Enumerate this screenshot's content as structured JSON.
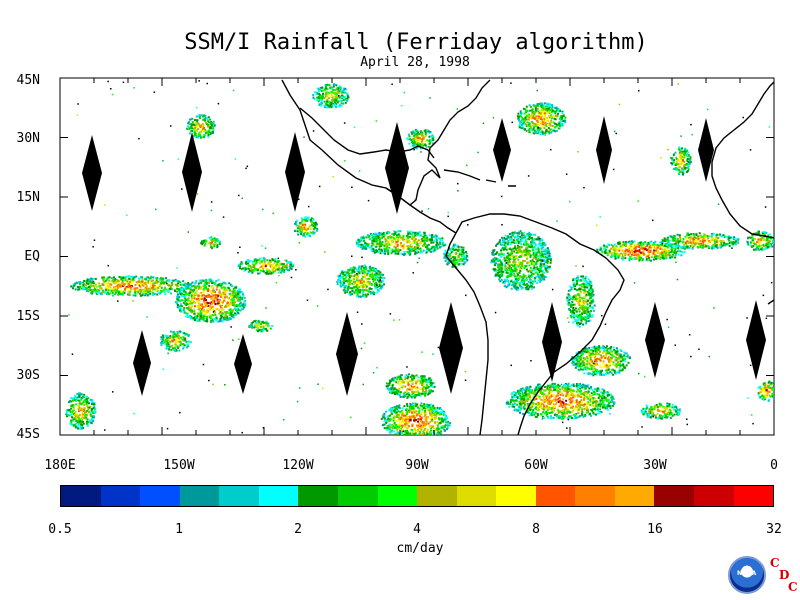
{
  "title": "SSM/I Rainfall (Ferriday algorithm)",
  "date": "April 28, 1998",
  "lat_labels": [
    "45N",
    "30N",
    "15N",
    "EQ",
    "15S",
    "30S",
    "45S"
  ],
  "lon_labels": [
    "180E",
    "150W",
    "120W",
    "90W",
    "60W",
    "30W",
    "0"
  ],
  "colorbar": {
    "ticks": [
      "0.5",
      "1",
      "2",
      "4",
      "8",
      "16",
      "32"
    ],
    "units": "cm/day",
    "colors": [
      "#001a80",
      "#0033c8",
      "#0050ff",
      "#00999b",
      "#00cccc",
      "#00ffff",
      "#009900",
      "#00cc00",
      "#00ff00",
      "#b2b200",
      "#dddd00",
      "#ffff00",
      "#ff5500",
      "#ff8000",
      "#ffaa00",
      "#990000",
      "#cc0000",
      "#ff0000"
    ]
  },
  "logo": {
    "text": "NOAA",
    "lab": [
      "C",
      "D",
      "C"
    ]
  },
  "colors": {
    "coast": "#000000",
    "diamond": "#000000",
    "frame": "#000000"
  }
}
